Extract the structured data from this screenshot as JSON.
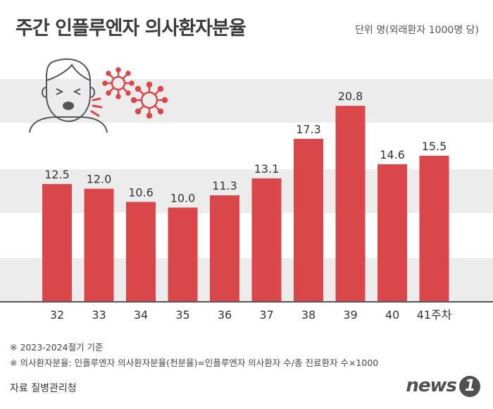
{
  "title": "주간 인플루엔자 의사환자분율",
  "unit": "단위 명(외래환자 1000명 당)",
  "notes": [
    "※ 2023-2024절기 기준",
    "※ 의사환자분율: 인플루엔자 의사환자분율(천분율)=인플루엔자 의사환자 수/총 진료환자 수×1000"
  ],
  "source": "자료 질병관리청",
  "logo": {
    "text": "news",
    "mark": "1"
  },
  "colors": {
    "bar": "#d9474b",
    "virus": "#d9474b",
    "band": "#ececec",
    "axis": "#555555"
  },
  "chart_data": {
    "type": "bar",
    "title": "주간 인플루엔자 의사환자분율",
    "categories": [
      "32",
      "33",
      "34",
      "35",
      "36",
      "37",
      "38",
      "39",
      "40",
      "41주차"
    ],
    "values": [
      12.5,
      12.0,
      10.6,
      10.0,
      11.3,
      13.1,
      17.3,
      20.8,
      14.6,
      15.5
    ],
    "value_labels": [
      "12.5",
      "12.0",
      "10.6",
      "10.0",
      "11.3",
      "13.1",
      "17.3",
      "20.8",
      "14.6",
      "15.5"
    ],
    "ylim": [
      0,
      23.2
    ],
    "grid": true,
    "xlabel": "",
    "ylabel": ""
  }
}
